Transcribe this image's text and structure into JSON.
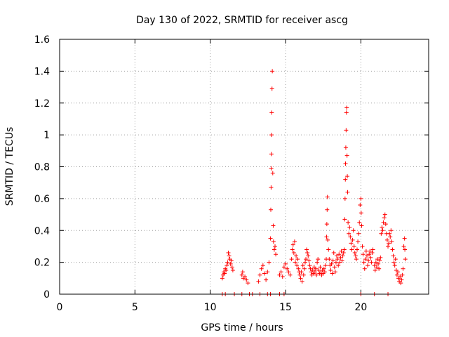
{
  "chart_data": {
    "type": "scatter",
    "title": "Day 130 of 2022, SRMTID for receiver ascg",
    "xlabel": "GPS time / hours",
    "ylabel": "SRMTID / TECUs",
    "xlim": [
      0,
      24.5
    ],
    "ylim": [
      0,
      1.6
    ],
    "xticks": [
      0,
      5,
      10,
      15,
      20
    ],
    "xtick_labels": [
      "0",
      "5",
      "10",
      "15",
      "20"
    ],
    "yticks": [
      0,
      0.2,
      0.4,
      0.6,
      0.8,
      1.0,
      1.2,
      1.4,
      1.6
    ],
    "ytick_labels": [
      "0",
      "0.2",
      "0.4",
      "0.6",
      "0.8",
      "1",
      "1.2",
      "1.4",
      "1.6"
    ],
    "grid": true,
    "marker": "+",
    "color": "#ff0000",
    "series": [
      {
        "name": "SRMTID",
        "points": [
          [
            10.8,
            0
          ],
          [
            11.0,
            0
          ],
          [
            11.6,
            0
          ],
          [
            12.1,
            0
          ],
          [
            12.6,
            0
          ],
          [
            12.8,
            0
          ],
          [
            13.3,
            0
          ],
          [
            13.8,
            0
          ],
          [
            14.0,
            0
          ],
          [
            14.6,
            0
          ],
          [
            14.9,
            0
          ],
          [
            20.0,
            0
          ],
          [
            20.9,
            0
          ],
          [
            21.8,
            0
          ],
          [
            10.8,
            0.1
          ],
          [
            10.85,
            0.12
          ],
          [
            10.9,
            0.14
          ],
          [
            10.95,
            0.13
          ],
          [
            11.0,
            0.16
          ],
          [
            11.05,
            0.15
          ],
          [
            11.1,
            0.18
          ],
          [
            11.15,
            0.2
          ],
          [
            11.2,
            0.26
          ],
          [
            11.25,
            0.24
          ],
          [
            11.3,
            0.22
          ],
          [
            11.35,
            0.19
          ],
          [
            11.4,
            0.21
          ],
          [
            11.45,
            0.17
          ],
          [
            11.5,
            0.15
          ],
          [
            12.1,
            0.12
          ],
          [
            12.15,
            0.14
          ],
          [
            12.2,
            0.1
          ],
          [
            12.3,
            0.11
          ],
          [
            12.4,
            0.09
          ],
          [
            12.5,
            0.07
          ],
          [
            13.2,
            0.08
          ],
          [
            13.3,
            0.12
          ],
          [
            13.4,
            0.16
          ],
          [
            13.5,
            0.18
          ],
          [
            13.6,
            0.13
          ],
          [
            13.7,
            0.09
          ],
          [
            13.8,
            0.14
          ],
          [
            13.9,
            0.2
          ],
          [
            14.0,
            0.35
          ],
          [
            14.02,
            0.53
          ],
          [
            14.04,
            0.67
          ],
          [
            14.05,
            0.79
          ],
          [
            14.06,
            0.88
          ],
          [
            14.07,
            1.0
          ],
          [
            14.08,
            1.14
          ],
          [
            14.1,
            1.29
          ],
          [
            14.12,
            1.4
          ],
          [
            14.15,
            0.76
          ],
          [
            14.18,
            0.43
          ],
          [
            14.2,
            0.33
          ],
          [
            14.25,
            0.28
          ],
          [
            14.3,
            0.3
          ],
          [
            14.35,
            0.25
          ],
          [
            14.6,
            0.12
          ],
          [
            14.7,
            0.14
          ],
          [
            14.8,
            0.11
          ],
          [
            14.9,
            0.17
          ],
          [
            15.0,
            0.19
          ],
          [
            15.1,
            0.16
          ],
          [
            15.2,
            0.14
          ],
          [
            15.3,
            0.12
          ],
          [
            15.4,
            0.22
          ],
          [
            15.45,
            0.28
          ],
          [
            15.5,
            0.31
          ],
          [
            15.55,
            0.26
          ],
          [
            15.6,
            0.33
          ],
          [
            15.65,
            0.2
          ],
          [
            15.7,
            0.24
          ],
          [
            15.75,
            0.18
          ],
          [
            15.8,
            0.22
          ],
          [
            15.85,
            0.16
          ],
          [
            15.9,
            0.14
          ],
          [
            15.95,
            0.12
          ],
          [
            16.0,
            0.1
          ],
          [
            16.05,
            0.14
          ],
          [
            16.1,
            0.08
          ],
          [
            16.15,
            0.18
          ],
          [
            16.2,
            0.12
          ],
          [
            16.25,
            0.16
          ],
          [
            16.3,
            0.2
          ],
          [
            16.35,
            0.22
          ],
          [
            16.4,
            0.28
          ],
          [
            16.45,
            0.26
          ],
          [
            16.5,
            0.24
          ],
          [
            16.55,
            0.21
          ],
          [
            16.6,
            0.18
          ],
          [
            16.65,
            0.16
          ],
          [
            16.7,
            0.14
          ],
          [
            16.75,
            0.12
          ],
          [
            16.8,
            0.15
          ],
          [
            16.85,
            0.13
          ],
          [
            16.9,
            0.17
          ],
          [
            16.95,
            0.14
          ],
          [
            17.0,
            0.16
          ],
          [
            17.05,
            0.12
          ],
          [
            17.1,
            0.2
          ],
          [
            17.15,
            0.22
          ],
          [
            17.2,
            0.15
          ],
          [
            17.25,
            0.13
          ],
          [
            17.3,
            0.17
          ],
          [
            17.35,
            0.14
          ],
          [
            17.4,
            0.12
          ],
          [
            17.45,
            0.15
          ],
          [
            17.5,
            0.13
          ],
          [
            17.55,
            0.16
          ],
          [
            17.6,
            0.14
          ],
          [
            17.65,
            0.18
          ],
          [
            17.7,
            0.22
          ],
          [
            17.72,
            0.36
          ],
          [
            17.74,
            0.44
          ],
          [
            17.76,
            0.53
          ],
          [
            17.78,
            0.61
          ],
          [
            17.8,
            0.34
          ],
          [
            17.85,
            0.28
          ],
          [
            17.9,
            0.22
          ],
          [
            17.95,
            0.18
          ],
          [
            18.0,
            0.15
          ],
          [
            18.05,
            0.19
          ],
          [
            18.1,
            0.13
          ],
          [
            18.15,
            0.21
          ],
          [
            18.2,
            0.26
          ],
          [
            18.25,
            0.17
          ],
          [
            18.3,
            0.14
          ],
          [
            18.35,
            0.2
          ],
          [
            18.4,
            0.24
          ],
          [
            18.45,
            0.22
          ],
          [
            18.5,
            0.18
          ],
          [
            18.55,
            0.25
          ],
          [
            18.6,
            0.2
          ],
          [
            18.65,
            0.23
          ],
          [
            18.7,
            0.27
          ],
          [
            18.75,
            0.21
          ],
          [
            18.8,
            0.24
          ],
          [
            18.85,
            0.26
          ],
          [
            18.9,
            0.28
          ],
          [
            18.93,
            0.47
          ],
          [
            18.95,
            0.6
          ],
          [
            18.97,
            0.72
          ],
          [
            18.98,
            0.82
          ],
          [
            19.0,
            0.92
          ],
          [
            19.02,
            1.03
          ],
          [
            19.04,
            1.14
          ],
          [
            19.06,
            1.17
          ],
          [
            19.08,
            0.87
          ],
          [
            19.1,
            0.74
          ],
          [
            19.12,
            0.64
          ],
          [
            19.15,
            0.45
          ],
          [
            19.2,
            0.38
          ],
          [
            19.25,
            0.42
          ],
          [
            19.3,
            0.36
          ],
          [
            19.35,
            0.32
          ],
          [
            19.4,
            0.28
          ],
          [
            19.45,
            0.34
          ],
          [
            19.5,
            0.4
          ],
          [
            19.55,
            0.3
          ],
          [
            19.6,
            0.26
          ],
          [
            19.65,
            0.24
          ],
          [
            19.7,
            0.22
          ],
          [
            19.75,
            0.28
          ],
          [
            19.8,
            0.33
          ],
          [
            19.85,
            0.38
          ],
          [
            19.9,
            0.45
          ],
          [
            19.95,
            0.56
          ],
          [
            20.0,
            0.6
          ],
          [
            20.02,
            0.51
          ],
          [
            20.05,
            0.43
          ],
          [
            20.1,
            0.3
          ],
          [
            20.15,
            0.25
          ],
          [
            20.2,
            0.2
          ],
          [
            20.25,
            0.16
          ],
          [
            20.3,
            0.22
          ],
          [
            20.35,
            0.27
          ],
          [
            20.4,
            0.24
          ],
          [
            20.45,
            0.18
          ],
          [
            20.5,
            0.21
          ],
          [
            20.55,
            0.25
          ],
          [
            20.6,
            0.27
          ],
          [
            20.65,
            0.23
          ],
          [
            20.7,
            0.2
          ],
          [
            20.75,
            0.26
          ],
          [
            20.8,
            0.28
          ],
          [
            20.9,
            0.18
          ],
          [
            20.95,
            0.15
          ],
          [
            21.0,
            0.2
          ],
          [
            21.05,
            0.17
          ],
          [
            21.1,
            0.22
          ],
          [
            21.15,
            0.19
          ],
          [
            21.2,
            0.16
          ],
          [
            21.25,
            0.21
          ],
          [
            21.3,
            0.23
          ],
          [
            21.35,
            0.38
          ],
          [
            21.4,
            0.42
          ],
          [
            21.45,
            0.4
          ],
          [
            21.5,
            0.45
          ],
          [
            21.55,
            0.48
          ],
          [
            21.6,
            0.5
          ],
          [
            21.65,
            0.44
          ],
          [
            21.7,
            0.38
          ],
          [
            21.75,
            0.34
          ],
          [
            21.8,
            0.3
          ],
          [
            21.85,
            0.32
          ],
          [
            21.9,
            0.38
          ],
          [
            21.95,
            0.36
          ],
          [
            22.0,
            0.4
          ],
          [
            22.05,
            0.33
          ],
          [
            22.1,
            0.28
          ],
          [
            22.15,
            0.24
          ],
          [
            22.2,
            0.2
          ],
          [
            22.25,
            0.18
          ],
          [
            22.3,
            0.22
          ],
          [
            22.35,
            0.15
          ],
          [
            22.4,
            0.12
          ],
          [
            22.45,
            0.14
          ],
          [
            22.5,
            0.1
          ],
          [
            22.55,
            0.08
          ],
          [
            22.6,
            0.11
          ],
          [
            22.65,
            0.07
          ],
          [
            22.7,
            0.09
          ],
          [
            22.75,
            0.12
          ],
          [
            22.8,
            0.16
          ],
          [
            22.85,
            0.3
          ],
          [
            22.9,
            0.35
          ],
          [
            22.92,
            0.28
          ],
          [
            22.95,
            0.22
          ]
        ]
      }
    ]
  }
}
